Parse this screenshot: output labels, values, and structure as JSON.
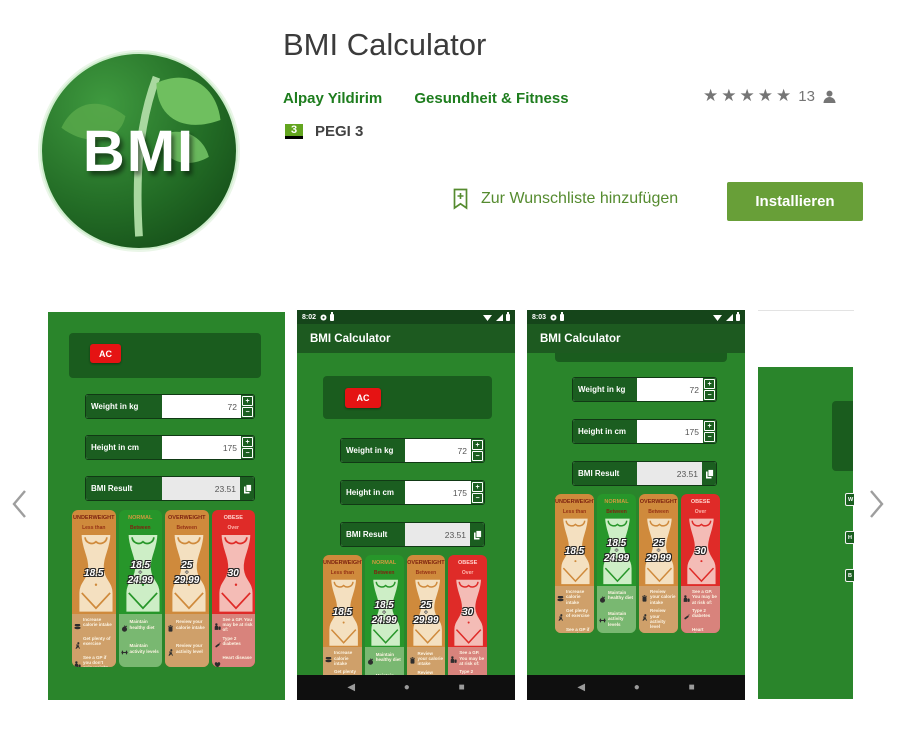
{
  "header": {
    "icon_text": "BMI",
    "title": "BMI Calculator",
    "developer": "Alpay Yildirim",
    "category": "Gesundheit & Fitness",
    "rating": {
      "stars": 5,
      "count": "13"
    },
    "content_rating": {
      "badge": "3",
      "label": "PEGI 3"
    },
    "wishlist_label": "Zur Wunschliste hinzufügen",
    "install_label": "Installieren"
  },
  "app_ui": {
    "app_bar_title": "BMI Calculator",
    "clear_button": "AC",
    "rows": [
      {
        "label": "Weight in kg",
        "value": "72",
        "type": "stepper"
      },
      {
        "label": "Height in cm",
        "value": "175",
        "type": "stepper"
      },
      {
        "label": "BMI Result",
        "value": "23.51",
        "type": "copy"
      }
    ],
    "stepper_plus": "+",
    "stepper_minus": "−",
    "nav": [
      "back-icon",
      "home-icon",
      "recents-icon"
    ],
    "screens": [
      {
        "time": "8:02"
      },
      {
        "time": "8:03"
      }
    ],
    "partial_row_letters": [
      "W",
      "H",
      "B"
    ]
  },
  "bmi_chart": {
    "columns": [
      {
        "name": "UNDERWEIGHT",
        "qualifier": "Less than",
        "range": [
          "18.5"
        ],
        "theme": "orange",
        "tips": [
          {
            "icon": "meal-icon",
            "text": "Increase calorie intake"
          },
          {
            "icon": "runner-icon",
            "text": "Get plenty of exercise"
          },
          {
            "icon": "gp-icon",
            "text": "See a GP if you don't gain weight"
          }
        ]
      },
      {
        "name": "NORMAL",
        "qualifier": "Between",
        "range": [
          "18.5",
          "24.99"
        ],
        "theme": "green",
        "tips": [
          {
            "icon": "apple-icon",
            "text": "Maintain healthy diet"
          },
          {
            "icon": "dumbbell-icon",
            "text": "Maintain activity levels"
          }
        ]
      },
      {
        "name": "OVERWEIGHT",
        "qualifier": "Between",
        "range": [
          "25",
          "29.99"
        ],
        "theme": "orange",
        "tips": [
          {
            "icon": "trash-icon",
            "text": "Review your calorie intake"
          },
          {
            "icon": "runner-icon",
            "text": "Review your activity level"
          }
        ]
      },
      {
        "name": "OBESE",
        "qualifier": "Over",
        "range": [
          "30"
        ],
        "theme": "red",
        "tips": [
          {
            "icon": "gp-icon",
            "text": "See a GP. You may be at risk of:"
          },
          {
            "icon": "syringe-icon",
            "text": "Type 2 diabetes"
          },
          {
            "icon": "heart-icon",
            "text": "Heart disease"
          }
        ]
      }
    ]
  },
  "colors": {
    "install_button": "#689f38",
    "wishlist_green": "#558b2f",
    "link_green": "#1e7d1e",
    "phone_green": "#2a852b",
    "panel_green": "#1a5c1e",
    "ac_red": "#e51313",
    "chart_orange": "#cf8a3c",
    "chart_green": "#27962a",
    "chart_red": "#df2b28"
  }
}
